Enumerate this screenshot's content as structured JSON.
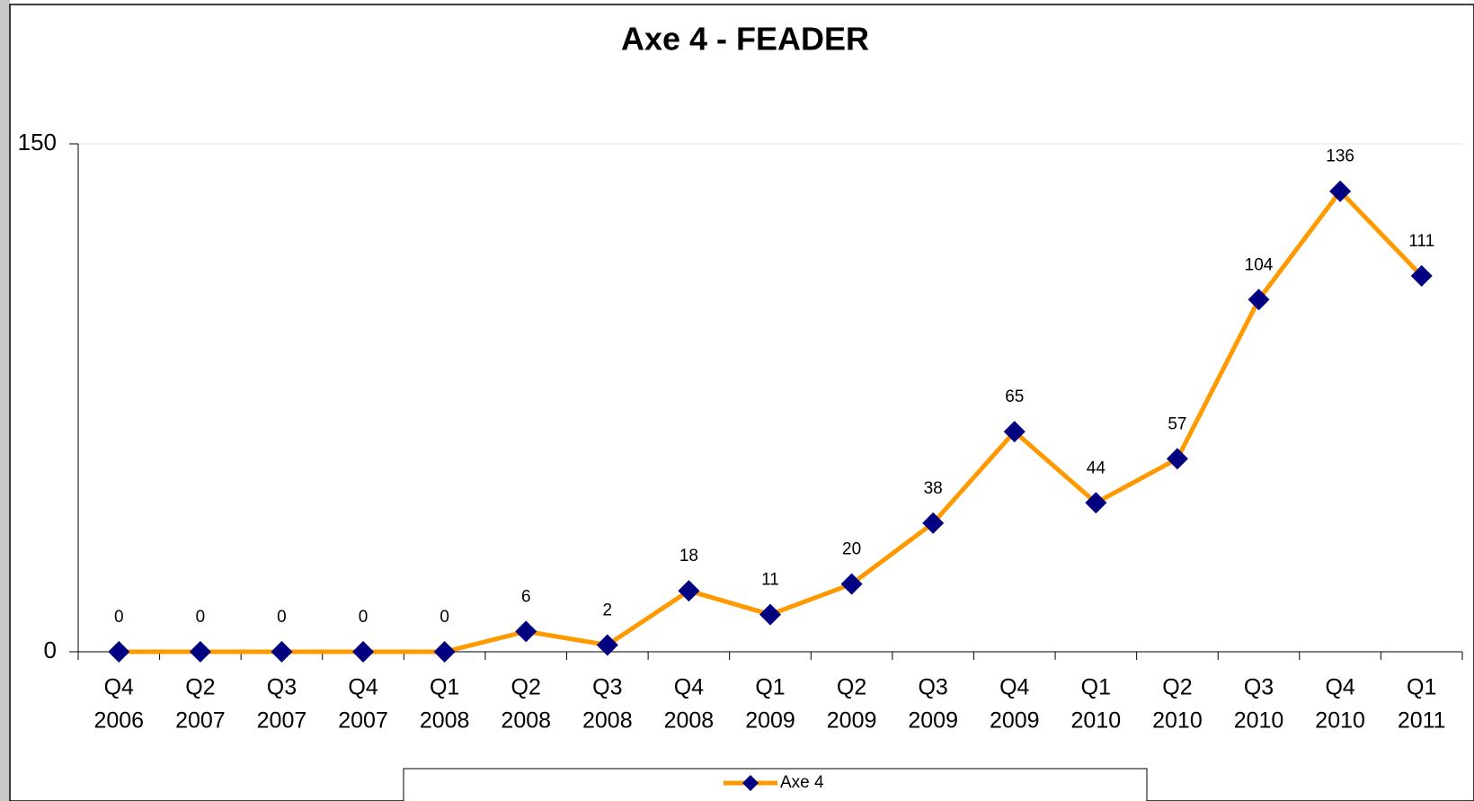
{
  "chart_data": {
    "type": "line",
    "title": "Axe 4 - FEADER",
    "categories": [
      [
        "Q4",
        "2006"
      ],
      [
        "Q2",
        "2007"
      ],
      [
        "Q3",
        "2007"
      ],
      [
        "Q4",
        "2007"
      ],
      [
        "Q1",
        "2008"
      ],
      [
        "Q2",
        "2008"
      ],
      [
        "Q3",
        "2008"
      ],
      [
        "Q4",
        "2008"
      ],
      [
        "Q1",
        "2009"
      ],
      [
        "Q2",
        "2009"
      ],
      [
        "Q3",
        "2009"
      ],
      [
        "Q4",
        "2009"
      ],
      [
        "Q1",
        "2010"
      ],
      [
        "Q2",
        "2010"
      ],
      [
        "Q3",
        "2010"
      ],
      [
        "Q4",
        "2010"
      ],
      [
        "Q1",
        "2011"
      ]
    ],
    "series": [
      {
        "name": "Axe 4",
        "color": "#FF9900",
        "marker_color": "#000080",
        "values": [
          0,
          0,
          0,
          0,
          0,
          6,
          2,
          18,
          11,
          20,
          38,
          65,
          44,
          57,
          104,
          136,
          111
        ]
      }
    ],
    "ylim": [
      0,
      150
    ],
    "yticks": [
      0,
      150
    ],
    "grid": true,
    "legend": "bottom"
  }
}
